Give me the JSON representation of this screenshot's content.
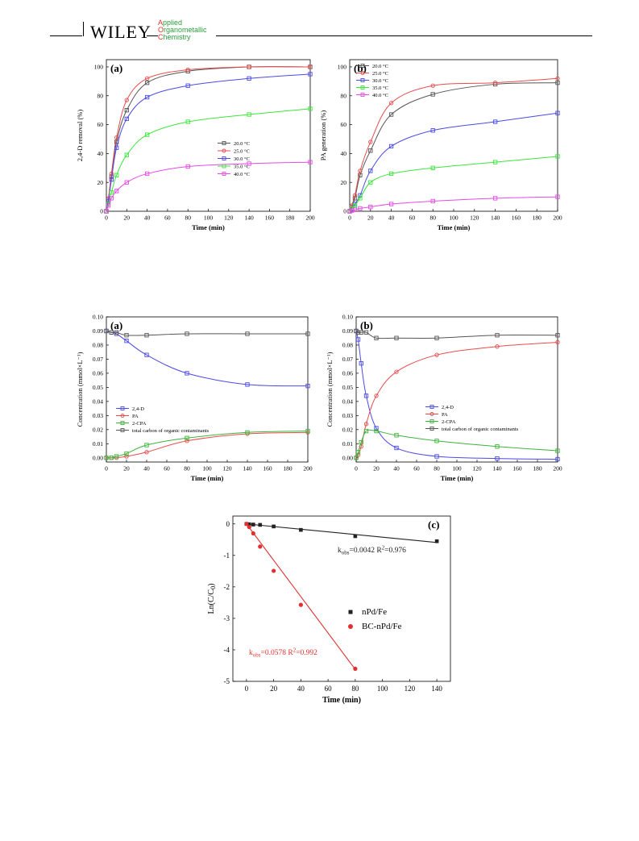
{
  "header": {
    "publisher": "WILEY",
    "journal_lines": [
      {
        "cap": "A",
        "rest": "pplied"
      },
      {
        "cap": "O",
        "rest": "rganometallic"
      },
      {
        "cap": "C",
        "rest": "hemistry"
      }
    ]
  },
  "chart_data": [
    {
      "id": "fig-top-a",
      "type": "line",
      "panel_label": "(a)",
      "xlabel": "Time (min)",
      "ylabel": "2,4-D removal (%)",
      "xlim": [
        0,
        200
      ],
      "ylim": [
        0,
        105
      ],
      "xticks": [
        0,
        20,
        40,
        60,
        80,
        100,
        120,
        140,
        160,
        180,
        200
      ],
      "yticks": [
        0,
        20,
        40,
        60,
        80,
        100
      ],
      "legend_position": "bottom-right",
      "series": [
        {
          "name": "20.0 °C",
          "color": "#555555",
          "marker": "square",
          "x": [
            0,
            2,
            5,
            10,
            20,
            40,
            80,
            140,
            200
          ],
          "y": [
            0,
            8,
            24,
            48,
            70,
            89,
            97,
            100,
            100
          ]
        },
        {
          "name": "25.0 °C",
          "color": "#e74c4c",
          "marker": "circle",
          "x": [
            0,
            2,
            5,
            10,
            20,
            40,
            80,
            140,
            200
          ],
          "y": [
            0,
            9,
            26,
            51,
            77,
            92,
            98,
            100,
            100
          ]
        },
        {
          "name": "30.0 °C",
          "color": "#4a4ae6",
          "marker": "square",
          "x": [
            0,
            2,
            5,
            10,
            20,
            40,
            80,
            140,
            200
          ],
          "y": [
            0,
            7,
            22,
            44,
            64,
            79,
            87,
            92,
            95
          ]
        },
        {
          "name": "35.0 °C",
          "color": "#3ce63c",
          "marker": "square",
          "x": [
            0,
            2,
            5,
            10,
            20,
            40,
            80,
            140,
            200
          ],
          "y": [
            0,
            5,
            13,
            25,
            39,
            53,
            62,
            67,
            71
          ]
        },
        {
          "name": "40.0 °C",
          "color": "#e64ae6",
          "marker": "square",
          "x": [
            0,
            2,
            5,
            10,
            20,
            40,
            80,
            140,
            200
          ],
          "y": [
            0,
            4,
            9,
            14,
            20,
            26,
            31,
            33,
            34
          ]
        }
      ]
    },
    {
      "id": "fig-top-b",
      "type": "line",
      "panel_label": "(b)",
      "xlabel": "Time (min)",
      "ylabel": "PA generation (%)",
      "xlim": [
        0,
        200
      ],
      "ylim": [
        0,
        105
      ],
      "xticks": [
        0,
        20,
        40,
        60,
        80,
        100,
        120,
        140,
        160,
        180,
        200
      ],
      "yticks": [
        0,
        20,
        40,
        60,
        80,
        100
      ],
      "legend_position": "top-left",
      "series": [
        {
          "name": "20.0 °C",
          "color": "#555555",
          "marker": "square",
          "x": [
            0,
            2,
            5,
            10,
            20,
            40,
            80,
            140,
            200
          ],
          "y": [
            0,
            3,
            9,
            25,
            42,
            67,
            81,
            88,
            89
          ]
        },
        {
          "name": "25.0 °C",
          "color": "#e74c4c",
          "marker": "circle",
          "x": [
            0,
            2,
            5,
            10,
            20,
            40,
            80,
            140,
            200
          ],
          "y": [
            0,
            4,
            11,
            28,
            48,
            75,
            87,
            89,
            92
          ]
        },
        {
          "name": "30.0 °C",
          "color": "#4a4ae6",
          "marker": "square",
          "x": [
            0,
            2,
            5,
            10,
            20,
            40,
            80,
            140,
            200
          ],
          "y": [
            0,
            2,
            5,
            11,
            28,
            45,
            56,
            62,
            68
          ]
        },
        {
          "name": "35.0 °C",
          "color": "#3ce63c",
          "marker": "square",
          "x": [
            0,
            2,
            5,
            10,
            20,
            40,
            80,
            140,
            200
          ],
          "y": [
            0,
            2,
            4,
            9,
            20,
            26,
            30,
            34,
            38
          ]
        },
        {
          "name": "40.0 °C",
          "color": "#e64ae6",
          "marker": "square",
          "x": [
            0,
            2,
            5,
            10,
            20,
            40,
            80,
            140,
            200
          ],
          "y": [
            0,
            0.5,
            1,
            2,
            3,
            5,
            7,
            9,
            10
          ]
        }
      ]
    },
    {
      "id": "fig-mid-a",
      "type": "line",
      "panel_label": "(a)",
      "xlabel": "Time (min)",
      "ylabel": "Concentration (mmol×L⁻¹)",
      "xlim": [
        0,
        200
      ],
      "ylim": [
        -0.003,
        0.1
      ],
      "xticks": [
        0,
        20,
        40,
        60,
        80,
        100,
        120,
        140,
        160,
        180,
        200
      ],
      "yticks": [
        0.0,
        0.01,
        0.02,
        0.03,
        0.04,
        0.05,
        0.06,
        0.07,
        0.08,
        0.09,
        0.1
      ],
      "ytick_labels": [
        "0.00",
        "0.01",
        "0.02",
        "0.03",
        "0.04",
        "0.05",
        "0.06",
        "0.07",
        "0.08",
        "0.09",
        "0.10"
      ],
      "legend_position": "middle-left",
      "series": [
        {
          "name": "2,4-D",
          "color": "#4a4ae6",
          "marker": "square",
          "x": [
            0,
            5,
            10,
            20,
            40,
            80,
            140,
            200
          ],
          "y": [
            0.09,
            0.089,
            0.088,
            0.083,
            0.073,
            0.06,
            0.052,
            0.051
          ]
        },
        {
          "name": "PA",
          "color": "#e74c4c",
          "marker": "circle",
          "x": [
            0,
            5,
            10,
            20,
            40,
            80,
            140,
            200
          ],
          "y": [
            0,
            0,
            0,
            0.001,
            0.004,
            0.012,
            0.017,
            0.018
          ]
        },
        {
          "name": "2-CPA",
          "color": "#3cb43c",
          "marker": "square",
          "x": [
            0,
            5,
            10,
            20,
            40,
            80,
            140,
            200
          ],
          "y": [
            0,
            0,
            0.001,
            0.003,
            0.009,
            0.014,
            0.018,
            0.019
          ]
        },
        {
          "name": "total carbon of organic contaminants",
          "color": "#555555",
          "marker": "square",
          "x": [
            0,
            5,
            10,
            20,
            40,
            80,
            140,
            200
          ],
          "y": [
            0.09,
            0.089,
            0.089,
            0.087,
            0.087,
            0.088,
            0.088,
            0.088
          ]
        }
      ]
    },
    {
      "id": "fig-mid-b",
      "type": "line",
      "panel_label": "(b)",
      "xlabel": "Time (min)",
      "ylabel": "Concentration (mmol×L⁻¹)",
      "xlim": [
        0,
        200
      ],
      "ylim": [
        -0.003,
        0.1
      ],
      "xticks": [
        0,
        20,
        40,
        60,
        80,
        100,
        120,
        140,
        160,
        180,
        200
      ],
      "yticks": [
        0.0,
        0.01,
        0.02,
        0.03,
        0.04,
        0.05,
        0.06,
        0.07,
        0.08,
        0.09,
        0.1
      ],
      "ytick_labels": [
        "0.00",
        "0.01",
        "0.02",
        "0.03",
        "0.04",
        "0.05",
        "0.06",
        "0.07",
        "0.08",
        "0.09",
        "0.10"
      ],
      "legend_position": "middle-right",
      "series": [
        {
          "name": "2,4-D",
          "color": "#4a4ae6",
          "marker": "square",
          "x": [
            0,
            2,
            5,
            10,
            20,
            40,
            80,
            140,
            200
          ],
          "y": [
            0.09,
            0.084,
            0.067,
            0.044,
            0.021,
            0.007,
            0.001,
            -0.0005,
            -0.001
          ]
        },
        {
          "name": "PA",
          "color": "#e74c4c",
          "marker": "circle",
          "x": [
            0,
            2,
            5,
            10,
            20,
            40,
            80,
            140,
            200
          ],
          "y": [
            0,
            0.002,
            0.008,
            0.024,
            0.044,
            0.061,
            0.073,
            0.079,
            0.082
          ]
        },
        {
          "name": "2-CPA",
          "color": "#3cb43c",
          "marker": "square",
          "x": [
            0,
            2,
            5,
            10,
            20,
            40,
            80,
            140,
            200
          ],
          "y": [
            0,
            0.004,
            0.011,
            0.019,
            0.019,
            0.016,
            0.012,
            0.008,
            0.005
          ]
        },
        {
          "name": "total carbon of organic contaminants",
          "color": "#555555",
          "marker": "square",
          "x": [
            0,
            2,
            5,
            10,
            20,
            40,
            80,
            140,
            200
          ],
          "y": [
            0.09,
            0.089,
            0.089,
            0.089,
            0.085,
            0.085,
            0.085,
            0.087,
            0.087
          ]
        }
      ]
    },
    {
      "id": "fig-bottom-c",
      "type": "scatter",
      "panel_label": "(c)",
      "xlabel": "Time (min)",
      "ylabel_main": "Ln(C/C",
      "ylabel_sub": "0",
      "ylabel_end": ")",
      "xlim": [
        -10,
        150
      ],
      "ylim": [
        -5,
        0.25
      ],
      "xticks": [
        0,
        20,
        40,
        60,
        80,
        100,
        120,
        140
      ],
      "yticks": [
        0,
        -1,
        -2,
        -3,
        -4,
        -5
      ],
      "legend_position": "right",
      "series": [
        {
          "name": "nPd/Fe",
          "color": "#222222",
          "marker": "square",
          "x": [
            0,
            2,
            5,
            10,
            20,
            40,
            80,
            140
          ],
          "y": [
            0,
            -0.01,
            -0.02,
            -0.03,
            -0.08,
            -0.19,
            -0.39,
            -0.55
          ],
          "fit": [
            [
              0,
              0.0
            ],
            [
              140,
              -0.59
            ]
          ]
        },
        {
          "name": "BC-nPd/Fe",
          "color": "#e03030",
          "marker": "circle",
          "x": [
            0,
            2,
            5,
            10,
            20,
            40,
            80
          ],
          "y": [
            0,
            -0.1,
            -0.3,
            -0.72,
            -1.49,
            -2.57,
            -4.6
          ],
          "fit": [
            [
              0,
              0.0
            ],
            [
              80,
              -4.62
            ]
          ]
        }
      ],
      "annotations": [
        {
          "id": "npd",
          "k_main": "k",
          "k_sub": "obs",
          "k_value": "=0.0042",
          "r_main": "R",
          "r_sup": "2",
          "r_value": "=0.976",
          "color": "#222222"
        },
        {
          "id": "bc",
          "k_main": "k",
          "k_sub": "obs",
          "k_value": "=0.0578",
          "r_main": "R",
          "r_sup": "2",
          "r_value": "=0.992",
          "color": "#e03030"
        }
      ]
    }
  ]
}
